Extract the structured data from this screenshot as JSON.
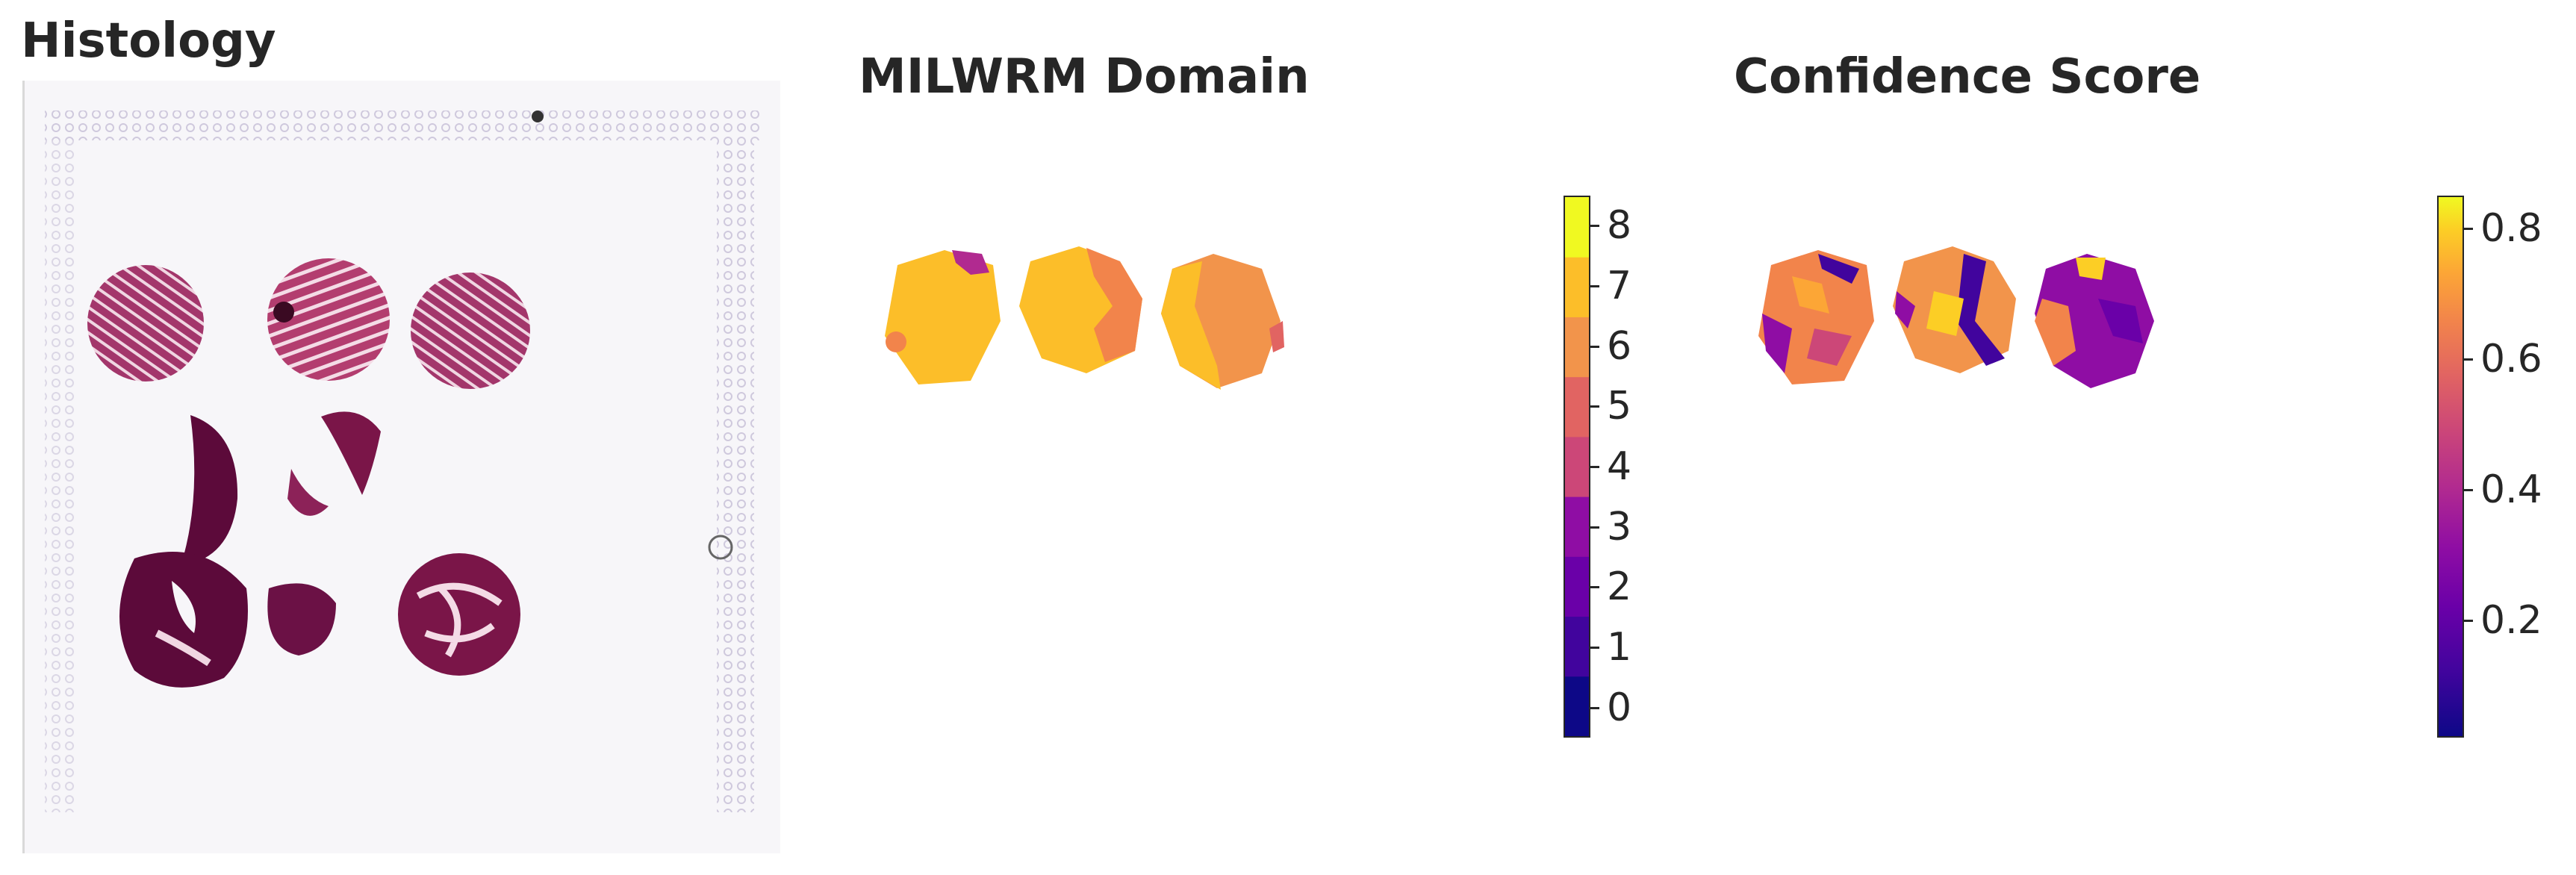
{
  "panels": {
    "histology": {
      "title": "Histology"
    },
    "domain": {
      "title": "MILWRM Domain"
    },
    "confidence": {
      "title": "Confidence Score"
    }
  },
  "colorbars": {
    "domain": {
      "ticks": [
        "0",
        "1",
        "2",
        "3",
        "4",
        "5",
        "6",
        "7",
        "8"
      ],
      "colormap": "plasma",
      "discrete_colors": [
        "#0d0887",
        "#41049d",
        "#6a00a8",
        "#8f0da4",
        "#b12a90",
        "#cc4778",
        "#e16462",
        "#f2844b",
        "#fca636",
        "#fcce25",
        "#f0f921"
      ]
    },
    "confidence": {
      "ticks": [
        "0.2",
        "0.4",
        "0.6",
        "0.8"
      ],
      "colormap": "plasma",
      "range": [
        0.02,
        0.85
      ]
    }
  },
  "description_colors": {
    "tissue_dark": "#5c0a3a",
    "tissue_mid": "#a3366b",
    "tissue_light": "#d987a8",
    "slide_background": "#f7f6f9",
    "fiducial": "#cfc9dd"
  }
}
